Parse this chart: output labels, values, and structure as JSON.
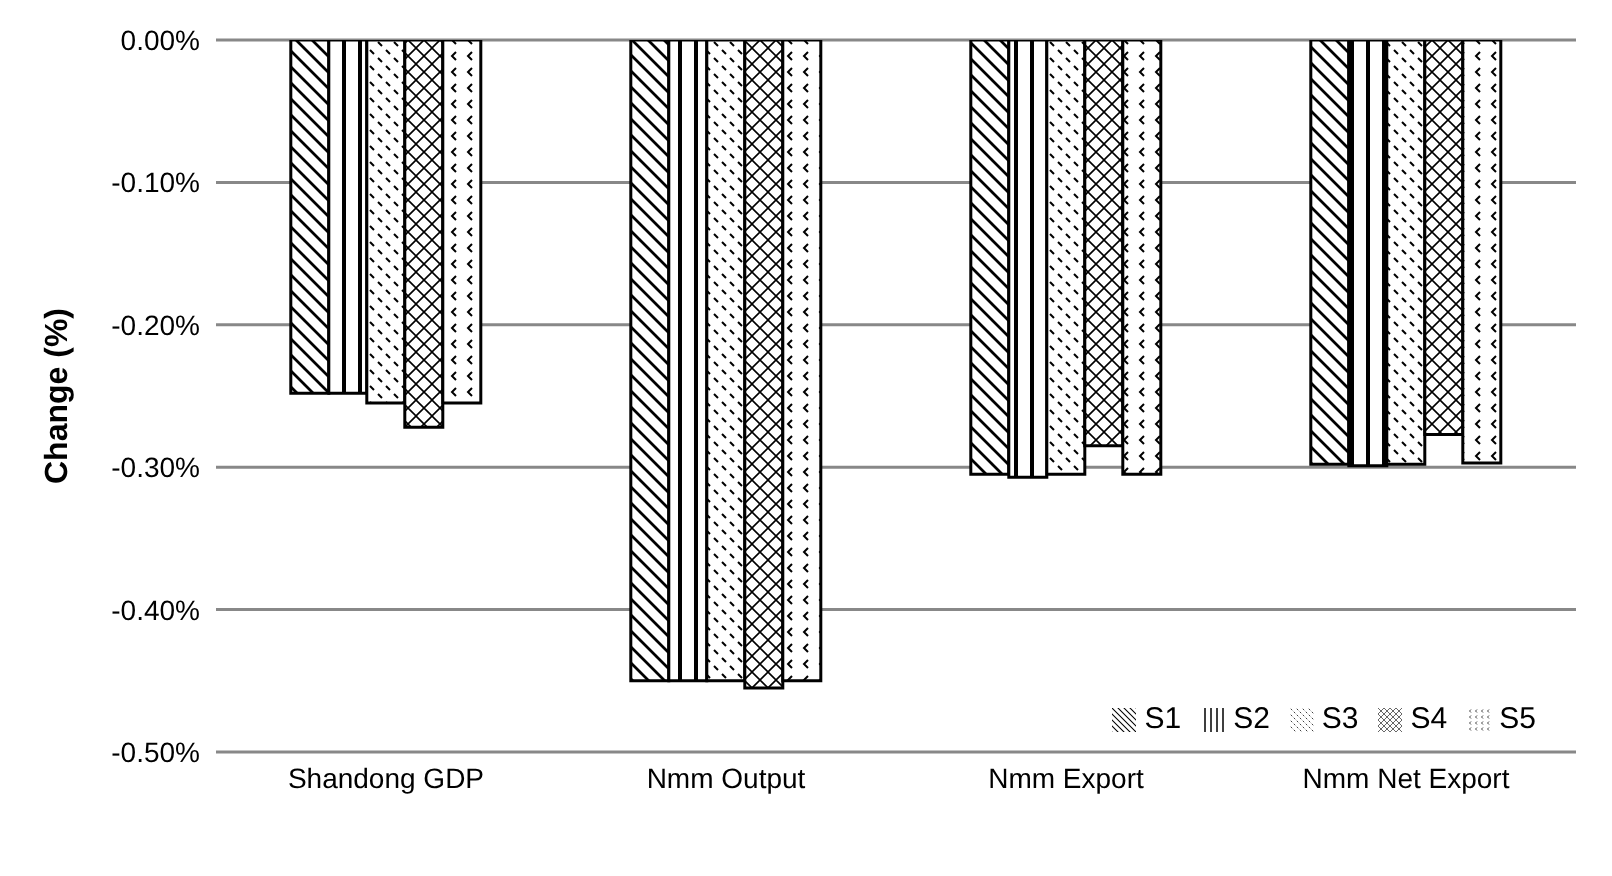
{
  "chart_data": {
    "type": "bar",
    "ylabel": "Change (%)",
    "categories": [
      "Shandong GDP",
      "Nmm Output",
      "Nmm Export",
      "Nmm Net Export"
    ],
    "series": [
      {
        "name": "S1",
        "color": "#000000",
        "values": [
          -0.248,
          -0.45,
          -0.305,
          -0.298
        ]
      },
      {
        "name": "S2",
        "color": "#000000",
        "values": [
          -0.248,
          -0.45,
          -0.307,
          -0.299
        ]
      },
      {
        "name": "S3",
        "color": "#000000",
        "values": [
          -0.255,
          -0.45,
          -0.305,
          -0.298
        ]
      },
      {
        "name": "S4",
        "color": "#000000",
        "values": [
          -0.272,
          -0.455,
          -0.285,
          -0.277
        ]
      },
      {
        "name": "S5",
        "color": "#000000",
        "values": [
          -0.255,
          -0.45,
          -0.305,
          -0.297
        ]
      }
    ],
    "ylim": [
      -0.5,
      0
    ],
    "yticks": [
      {
        "value": -0.5,
        "label": "-0.50%"
      },
      {
        "value": -0.4,
        "label": "-0.40%"
      },
      {
        "value": -0.3,
        "label": "-0.30%"
      },
      {
        "value": -0.2,
        "label": "-0.20%"
      },
      {
        "value": -0.1,
        "label": "-0.10%"
      },
      {
        "value": 0,
        "label": "0.00%"
      }
    ],
    "grid": "y",
    "legend": "bottom right"
  }
}
